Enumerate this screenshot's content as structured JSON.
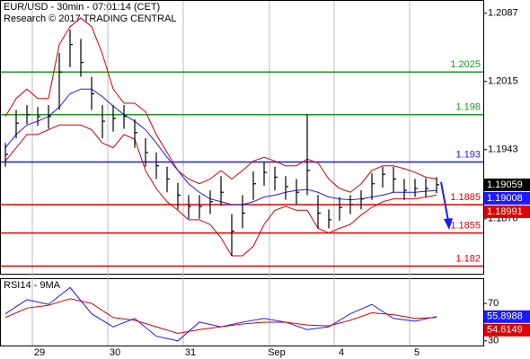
{
  "chart_data": [
    {
      "type": "ohlc",
      "title": "EUR/USD - 30min - 07:01:14 (CET)",
      "subtitle": "Research © 2017 TRADING CENTRAL",
      "categories": [
        null,
        null,
        null,
        "29",
        null,
        null,
        null,
        null,
        null,
        null,
        "30",
        null,
        null,
        null,
        null,
        null,
        null,
        "31",
        null,
        null,
        null,
        null,
        null,
        null,
        null,
        "Sep",
        null,
        null,
        null,
        null,
        null,
        "4",
        null,
        null,
        null,
        null,
        null,
        null,
        "5",
        null,
        null
      ],
      "high": [
        1.195,
        1.1985,
        1.199,
        1.1988,
        1.199,
        1.2045,
        1.207,
        1.206,
        1.202,
        1.199,
        1.199,
        1.199,
        1.1975,
        1.1955,
        1.194,
        1.1925,
        1.1908,
        1.1895,
        1.1895,
        1.19,
        1.1915,
        1.1875,
        1.1895,
        1.192,
        1.193,
        1.1925,
        1.1915,
        1.1912,
        1.198,
        1.1895,
        1.188,
        1.1893,
        1.1895,
        1.19,
        1.1918,
        1.1925,
        1.1925,
        1.1912,
        1.1912,
        1.1913,
        1.1914
      ],
      "low": [
        1.1925,
        1.1955,
        1.197,
        1.1968,
        1.1965,
        1.1985,
        1.203,
        1.202,
        1.1985,
        1.1955,
        1.1962,
        1.1965,
        1.1945,
        1.1925,
        1.1912,
        1.1898,
        1.188,
        1.187,
        1.187,
        1.1875,
        1.1884,
        1.1831,
        1.186,
        1.189,
        1.1905,
        1.19,
        1.189,
        1.1885,
        1.1895,
        1.186,
        1.186,
        1.1868,
        1.1875,
        1.188,
        1.189,
        1.1903,
        1.1898,
        1.189,
        1.1893,
        1.1893,
        1.1897
      ],
      "close": [
        1.1938,
        1.1971,
        1.198,
        1.1978,
        1.1978,
        1.2025,
        1.2054,
        1.2035,
        1.2002,
        1.1973,
        1.1976,
        1.1978,
        1.1961,
        1.194,
        1.1926,
        1.1912,
        1.1895,
        1.1883,
        1.1883,
        1.1888,
        1.1898,
        1.1857,
        1.1876,
        1.1907,
        1.1919,
        1.1914,
        1.1904,
        1.1898,
        1.1921,
        1.1876,
        1.1869,
        1.1882,
        1.1885,
        1.1891,
        1.1907,
        1.1917,
        1.1912,
        1.19,
        1.1902,
        1.1902,
        1.1906
      ],
      "bar_color": "#000000",
      "lines": [
        {
          "color": "#d00000",
          "values": [
            1.1978,
            1.1997,
            1.2007,
            1.1997,
            1.1997,
            1.2054,
            1.2073,
            1.2082,
            1.2073,
            1.2044,
            1.2007,
            1.1992,
            1.1992,
            1.1983,
            1.1959,
            1.194,
            1.1921,
            1.1912,
            1.1907,
            1.1912,
            1.1921,
            1.1912,
            1.1921,
            1.1931,
            1.1935,
            1.1931,
            1.1926,
            1.1926,
            1.1933,
            1.1929,
            1.1912,
            1.1902,
            1.1898,
            1.1907,
            1.1921,
            1.1926,
            1.1926,
            1.1923,
            1.1919,
            1.1914,
            1.1912
          ]
        },
        {
          "color": "#d00000",
          "values": [
            1.1931,
            1.1945,
            1.1959,
            1.1959,
            1.1964,
            1.1969,
            1.1969,
            1.1969,
            1.1964,
            1.195,
            1.1945,
            1.1959,
            1.1954,
            1.1921,
            1.1902,
            1.1888,
            1.1879,
            1.1869,
            1.1869,
            1.1864,
            1.185,
            1.1831,
            1.1831,
            1.1841,
            1.1864,
            1.1879,
            1.1883,
            1.1879,
            1.1879,
            1.186,
            1.1855,
            1.186,
            1.1864,
            1.1874,
            1.1882,
            1.1888,
            1.1891,
            1.1891,
            1.1891,
            1.1893,
            1.1895
          ]
        },
        {
          "color": "#1a1aff",
          "values": [
            1.1945,
            1.1959,
            1.1969,
            1.1973,
            1.1978,
            1.1988,
            1.2002,
            1.2007,
            1.2007,
            1.1999,
            1.1989,
            1.198,
            1.1973,
            1.1964,
            1.195,
            1.1935,
            1.1921,
            1.1907,
            1.1898,
            1.1891,
            1.1888,
            1.1885,
            1.1885,
            1.1888,
            1.1893,
            1.1895,
            1.1898,
            1.19,
            1.1901,
            1.1898,
            1.1893,
            1.1891,
            1.189,
            1.1891,
            1.1893,
            1.1895,
            1.1898,
            1.1898,
            1.1898,
            1.1899,
            1.19
          ]
        }
      ],
      "levels": [
        {
          "value": 1.2025,
          "color": "#1a9a1a"
        },
        {
          "value": 1.198,
          "color": "#1a9a1a"
        },
        {
          "value": 1.193,
          "color": "#1a1aff"
        },
        {
          "value": 1.1885,
          "color": "#e00000"
        },
        {
          "value": 1.1855,
          "color": "#e00000"
        },
        {
          "value": 1.182,
          "color": "#e00000"
        }
      ],
      "last_values": [
        {
          "value": 1.19059,
          "color": "#000000"
        },
        {
          "value": 1.19008,
          "color": "#1a1aff"
        },
        {
          "value": 1.18991,
          "color": "#e00000"
        }
      ],
      "ylim": [
        1.1812,
        1.2101
      ],
      "yticks": [
        1.2087,
        1.2015,
        1.1943,
        {
          "value": 1.187,
          "label": "1.1870"
        }
      ]
    },
    {
      "type": "line",
      "title": "RSI14 - 9MA",
      "series": [
        {
          "color": "#1a1aff",
          "values": [
            59,
            74,
            69,
            87,
            59,
            45,
            54,
            35,
            30,
            50,
            45,
            50,
            54,
            50,
            42,
            45,
            59,
            69,
            54,
            51,
            56
          ]
        },
        {
          "color": "#d00000",
          "values": [
            55,
            65,
            68,
            75,
            70,
            55,
            52,
            45,
            38,
            42,
            45,
            48,
            50,
            50,
            47,
            46,
            52,
            60,
            58,
            54,
            55
          ]
        }
      ],
      "last_values": [
        {
          "value": 55.8988,
          "color": "#1a1aff"
        },
        {
          "value": 54.6149,
          "color": "#e00000"
        }
      ],
      "ylim": [
        25,
        96
      ],
      "yticks": [
        70,
        30
      ]
    }
  ]
}
